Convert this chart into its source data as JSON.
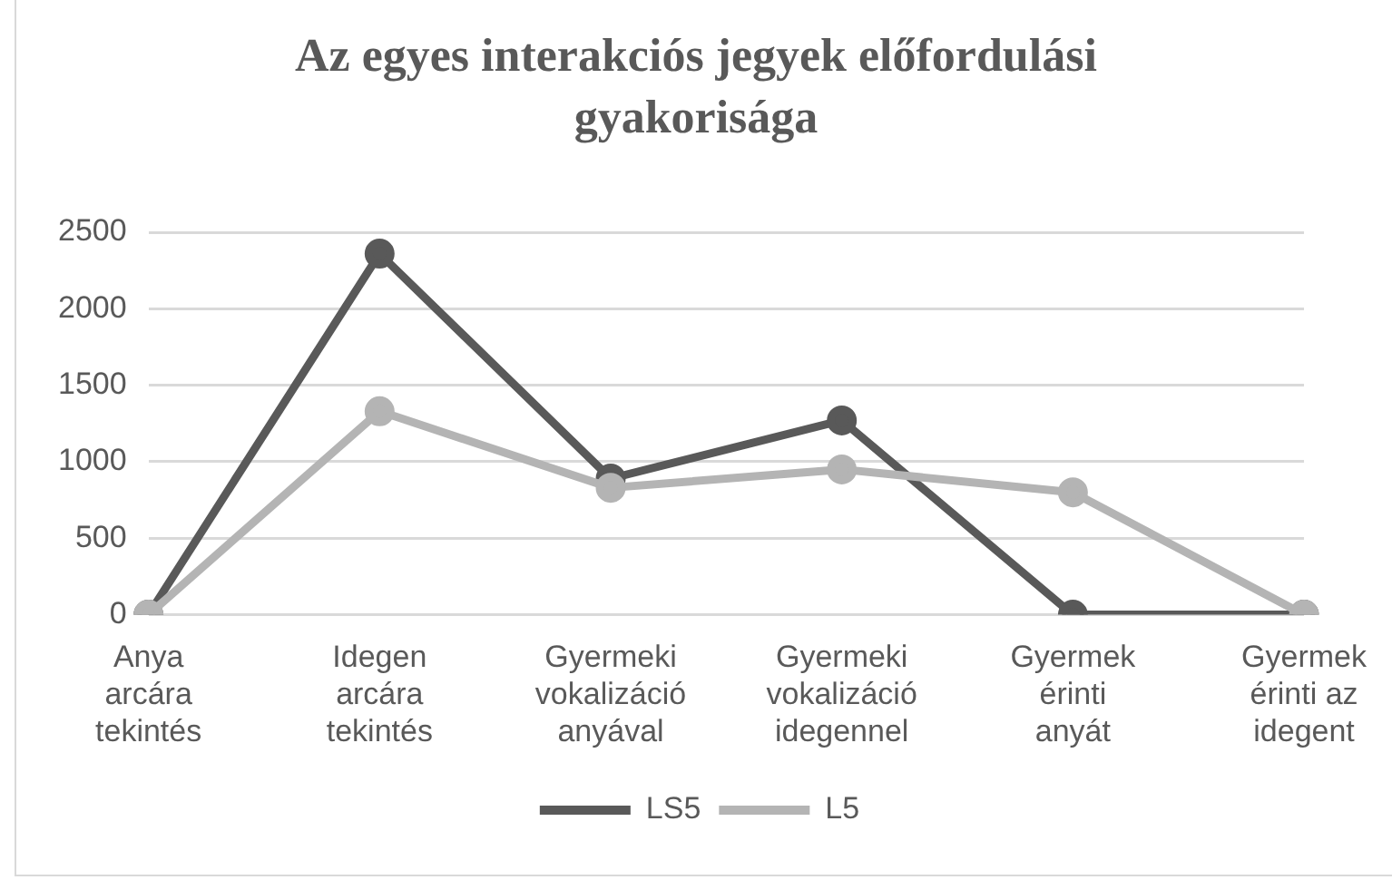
{
  "chart_data": {
    "type": "line",
    "title": "Az egyes interakciós jegyek előfordulási gyakorisága",
    "categories": [
      "Anya\narcára\ntekintés",
      "Idegen\narcára\ntekintés",
      "Gyermeki\nvokalizáció\nanyával",
      "Gyermeki\nvokalizáció\nidegennel",
      "Gyermek\nérinti\nanyát",
      "Gyermek\nérinti az\nidegent"
    ],
    "series": [
      {
        "name": "LS5",
        "color": "#595959",
        "values": [
          0,
          2360,
          890,
          1270,
          0,
          0
        ]
      },
      {
        "name": "L5",
        "color": "#b4b4b4",
        "values": [
          0,
          1330,
          830,
          950,
          800,
          0
        ]
      }
    ],
    "ylim": [
      0,
      2500
    ],
    "yticks": [
      0,
      500,
      1000,
      1500,
      2000,
      2500
    ],
    "grid": "y",
    "legend": "bottom",
    "marker": "circle",
    "line_style": "solid"
  }
}
